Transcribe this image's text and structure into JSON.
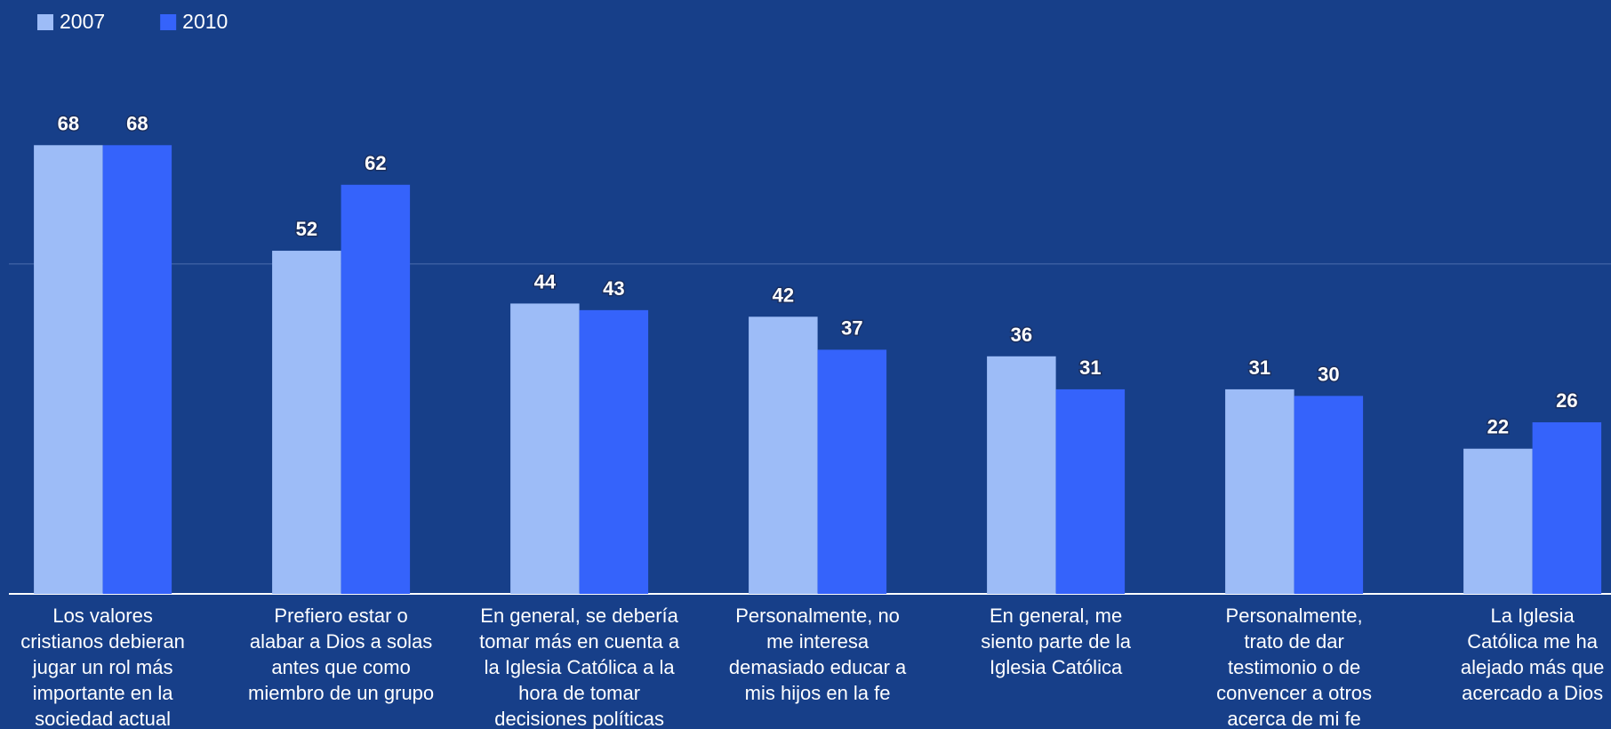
{
  "chart_data": {
    "type": "bar",
    "categories": [
      [
        "Los valores",
        "cristianos debieran",
        "jugar un rol más",
        "importante en la",
        "sociedad actual"
      ],
      [
        "Prefiero estar o",
        "alabar a Dios a solas",
        "antes que como",
        "miembro de un grupo"
      ],
      [
        "En general, se debería",
        "tomar más en cuenta a",
        "la Iglesia Católica a la",
        "hora de tomar",
        "decisiones políticas"
      ],
      [
        "Personalmente, no",
        "me interesa",
        "demasiado educar a",
        "mis hijos en la fe"
      ],
      [
        "En general, me",
        "siento parte de la",
        "Iglesia Católica"
      ],
      [
        "Personalmente,",
        "trato de dar",
        "testimonio o de",
        "convencer a otros",
        "acerca de mi fe"
      ],
      [
        "La Iglesia",
        "Católica me ha",
        "alejado más que",
        "acercado a Dios"
      ]
    ],
    "series": [
      {
        "name": "2007",
        "color": "#9dbcf7",
        "values": [
          68,
          52,
          44,
          42,
          36,
          31,
          22
        ]
      },
      {
        "name": "2010",
        "color": "#3563fb",
        "values": [
          68,
          62,
          43,
          37,
          31,
          30,
          26
        ]
      }
    ],
    "ylim": [
      0,
      90
    ],
    "yticks": [
      0,
      50
    ],
    "tick_labels": false,
    "grid": true,
    "legend": "top-left"
  }
}
